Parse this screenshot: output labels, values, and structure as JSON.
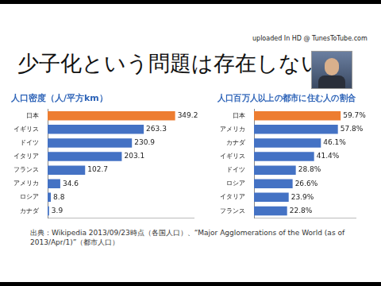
{
  "page": {
    "title": "少子化という問題は存在しない",
    "watermark": "uploaded In HD @ TunesToTube.com",
    "source": "出典：Wikipedia 2013/09/23時点（各国人口）、“Major Agglomerations of the World (as of 2013/Apr/1)”（都市人口）"
  },
  "chart_data": [
    {
      "type": "bar",
      "orientation": "horizontal",
      "title": "人口密度（人/平方km）",
      "categories": [
        "日本",
        "イギリス",
        "ドイツ",
        "イタリア",
        "フランス",
        "アメリカ",
        "ロシア",
        "カナダ"
      ],
      "values": [
        349.2,
        263.3,
        230.9,
        203.1,
        102.7,
        34.6,
        8.8,
        3.9
      ],
      "colors": [
        "#ed7d31",
        "#4472c4",
        "#4472c4",
        "#4472c4",
        "#4472c4",
        "#4472c4",
        "#4472c4",
        "#4472c4"
      ],
      "xlim": [
        0,
        400
      ],
      "data_labels": true,
      "tick_labels": "y",
      "grid": false
    },
    {
      "type": "bar",
      "orientation": "horizontal",
      "title": "人口百万人以上の都市に住む人の割合",
      "categories": [
        "日本",
        "アメリカ",
        "カナダ",
        "イギリス",
        "ドイツ",
        "ロシア",
        "イタリア",
        "フランス"
      ],
      "values": [
        59.7,
        57.8,
        46.1,
        41.4,
        28.8,
        26.6,
        23.9,
        22.8
      ],
      "value_labels": [
        "59.7%",
        "57.8%",
        "46.1%",
        "41.4%",
        "28.8%",
        "26.6%",
        "23.9%",
        "22.8%"
      ],
      "colors": [
        "#ed7d31",
        "#4472c4",
        "#4472c4",
        "#4472c4",
        "#4472c4",
        "#4472c4",
        "#4472c4",
        "#4472c4"
      ],
      "xlim": [
        0,
        70
      ],
      "data_labels": true,
      "tick_labels": "y",
      "grid": false
    }
  ]
}
